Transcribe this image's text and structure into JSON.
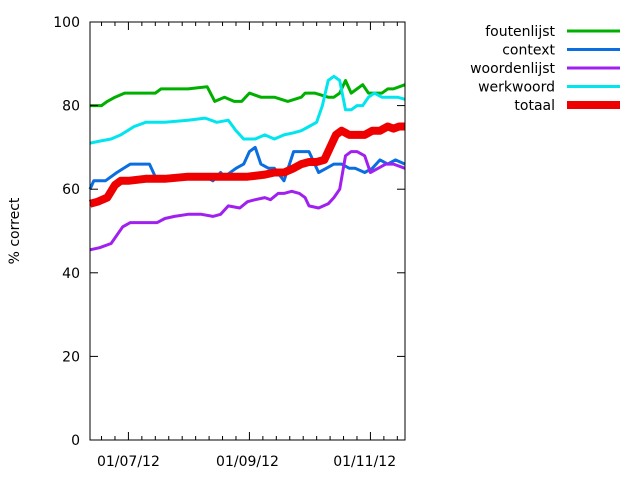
{
  "chart_data": {
    "type": "line",
    "title": "",
    "xlabel": "",
    "ylabel": "% correct",
    "ylim": [
      0,
      100
    ],
    "xlim": [
      "2012-06-11",
      "2012-11-22"
    ],
    "y_ticks": [
      0,
      20,
      40,
      60,
      80,
      100
    ],
    "x_tick_labels": [
      {
        "date": "2012-07-01",
        "label": "01/07/12"
      },
      {
        "date": "2012-09-01",
        "label": "01/09/12"
      },
      {
        "date": "2012-11-01",
        "label": "01/11/12"
      }
    ],
    "legend_position": "top-right, outside plot",
    "grid": false,
    "series": [
      {
        "name": "foutenlijst",
        "color": "#00b000",
        "line_width": 3,
        "x": [
          "2012-06-11",
          "2012-06-17",
          "2012-06-20",
          "2012-06-24",
          "2012-06-29",
          "2012-07-01",
          "2012-07-15",
          "2012-07-18",
          "2012-07-25",
          "2012-08-01",
          "2012-08-11",
          "2012-08-15",
          "2012-08-20",
          "2012-08-25",
          "2012-08-29",
          "2012-09-02",
          "2012-09-08",
          "2012-09-15",
          "2012-09-22",
          "2012-09-29",
          "2012-10-01",
          "2012-10-06",
          "2012-10-13",
          "2012-10-16",
          "2012-10-19",
          "2012-10-22",
          "2012-10-25",
          "2012-10-28",
          "2012-10-31",
          "2012-11-03",
          "2012-11-06",
          "2012-11-10",
          "2012-11-13",
          "2012-11-16",
          "2012-11-22"
        ],
        "y": [
          80,
          80,
          81,
          82,
          83,
          83,
          83,
          84,
          84,
          84,
          84.5,
          81,
          82,
          81,
          81,
          83,
          82,
          82,
          81,
          82,
          83,
          83,
          82,
          82,
          83,
          86,
          83,
          84,
          85,
          83,
          83,
          83,
          84,
          84,
          85
        ]
      },
      {
        "name": "context",
        "color": "#0a6ee0",
        "line_width": 3,
        "x": [
          "2012-06-11",
          "2012-06-13",
          "2012-06-19",
          "2012-06-25",
          "2012-07-02",
          "2012-07-08",
          "2012-07-12",
          "2012-07-15",
          "2012-07-18",
          "2012-07-25",
          "2012-08-01",
          "2012-08-05",
          "2012-08-10",
          "2012-08-14",
          "2012-08-18",
          "2012-08-20",
          "2012-08-26",
          "2012-08-30",
          "2012-09-02",
          "2012-09-05",
          "2012-09-08",
          "2012-09-12",
          "2012-09-15",
          "2012-09-20",
          "2012-09-25",
          "2012-09-30",
          "2012-10-03",
          "2012-10-08",
          "2012-10-12",
          "2012-10-16",
          "2012-10-20",
          "2012-10-24",
          "2012-10-27",
          "2012-11-01",
          "2012-11-05",
          "2012-11-09",
          "2012-11-13",
          "2012-11-17",
          "2012-11-22"
        ],
        "y": [
          60,
          62,
          62,
          64,
          66,
          66,
          66,
          63,
          63,
          63,
          63.5,
          63.5,
          63,
          62,
          64,
          63,
          65,
          66,
          69,
          70,
          66,
          65,
          65,
          62,
          69,
          69,
          69,
          64,
          65,
          66,
          66,
          65,
          65,
          64,
          65,
          67,
          66,
          67,
          66
        ]
      },
      {
        "name": "woordenlijst",
        "color": "#a020f0",
        "line_width": 3,
        "x": [
          "2012-06-11",
          "2012-06-16",
          "2012-06-22",
          "2012-06-28",
          "2012-07-02",
          "2012-07-10",
          "2012-07-16",
          "2012-07-20",
          "2012-07-25",
          "2012-08-01",
          "2012-08-08",
          "2012-08-14",
          "2012-08-18",
          "2012-08-22",
          "2012-08-28",
          "2012-09-01",
          "2012-09-05",
          "2012-09-10",
          "2012-09-13",
          "2012-09-17",
          "2012-09-20",
          "2012-09-24",
          "2012-09-28",
          "2012-10-01",
          "2012-10-03",
          "2012-10-08",
          "2012-10-13",
          "2012-10-16",
          "2012-10-19",
          "2012-10-22",
          "2012-10-25",
          "2012-10-28",
          "2012-11-01",
          "2012-11-04",
          "2012-11-08",
          "2012-11-12",
          "2012-11-16",
          "2012-11-22"
        ],
        "y": [
          45.5,
          46,
          47,
          51,
          52,
          52,
          52,
          53,
          53.5,
          54,
          54,
          53.5,
          54,
          56,
          55.5,
          57,
          57.5,
          58,
          57.5,
          59,
          59,
          59.5,
          59,
          58,
          56,
          55.5,
          56.5,
          58,
          60,
          68,
          69,
          69,
          68,
          64,
          65,
          66,
          66,
          65
        ]
      },
      {
        "name": "werkwoord",
        "color": "#00e5ee",
        "line_width": 3,
        "x": [
          "2012-06-11",
          "2012-06-16",
          "2012-06-22",
          "2012-06-27",
          "2012-07-04",
          "2012-07-10",
          "2012-07-20",
          "2012-08-01",
          "2012-08-10",
          "2012-08-16",
          "2012-08-22",
          "2012-08-26",
          "2012-08-30",
          "2012-09-05",
          "2012-09-10",
          "2012-09-15",
          "2012-09-20",
          "2012-09-25",
          "2012-09-29",
          "2012-10-03",
          "2012-10-07",
          "2012-10-10",
          "2012-10-13",
          "2012-10-16",
          "2012-10-19",
          "2012-10-22",
          "2012-10-25",
          "2012-10-28",
          "2012-10-31",
          "2012-11-03",
          "2012-11-06",
          "2012-11-10",
          "2012-11-14",
          "2012-11-18",
          "2012-11-22"
        ],
        "y": [
          71,
          71.5,
          72,
          73,
          75,
          76,
          76,
          76.5,
          77,
          76,
          76.5,
          74,
          72,
          72,
          73,
          72,
          73,
          73.5,
          74,
          75,
          76,
          80,
          86,
          87,
          86,
          79,
          79,
          80,
          80,
          82,
          83,
          82,
          82,
          82,
          81.5
        ]
      },
      {
        "name": "totaal",
        "color": "#ee0000",
        "line_width": 8,
        "x": [
          "2012-06-11",
          "2012-06-15",
          "2012-06-20",
          "2012-06-24",
          "2012-06-27",
          "2012-07-01",
          "2012-07-10",
          "2012-07-20",
          "2012-08-01",
          "2012-08-10",
          "2012-08-20",
          "2012-08-25",
          "2012-09-01",
          "2012-09-10",
          "2012-09-15",
          "2012-09-20",
          "2012-09-25",
          "2012-09-29",
          "2012-10-03",
          "2012-10-07",
          "2012-10-11",
          "2012-10-14",
          "2012-10-17",
          "2012-10-20",
          "2012-10-24",
          "2012-10-28",
          "2012-11-01",
          "2012-11-05",
          "2012-11-09",
          "2012-11-13",
          "2012-11-16",
          "2012-11-19",
          "2012-11-22"
        ],
        "y": [
          56.5,
          57,
          58,
          61,
          62,
          62,
          62.5,
          62.5,
          63,
          63,
          63,
          63,
          63,
          63.5,
          64,
          64,
          65,
          66,
          66.5,
          66.5,
          67,
          70,
          73,
          74,
          73,
          73,
          73,
          74,
          74,
          75,
          74.5,
          75,
          75
        ]
      }
    ]
  }
}
